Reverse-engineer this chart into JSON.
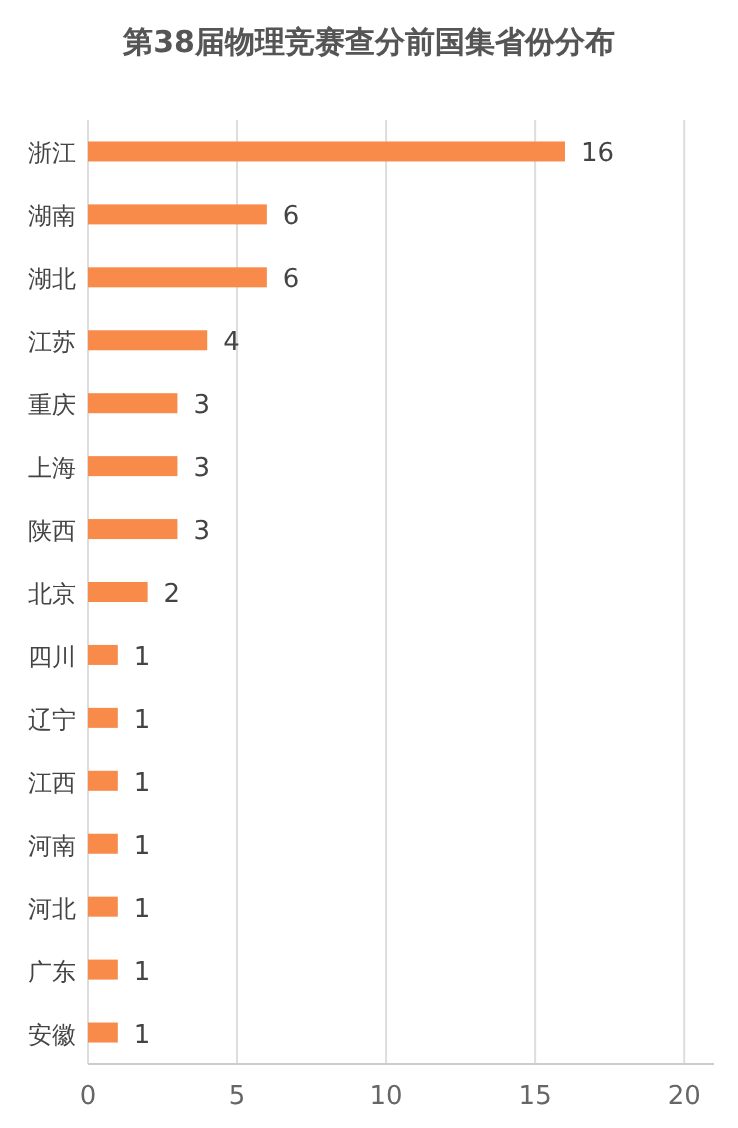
{
  "chart_data": {
    "type": "bar",
    "orientation": "horizontal",
    "title": "第38届物理竞赛查分前国集省份分布",
    "categories": [
      "浙江",
      "湖南",
      "湖北",
      "江苏",
      "重庆",
      "上海",
      "陕西",
      "北京",
      "四川",
      "辽宁",
      "江西",
      "河南",
      "河北",
      "广东",
      "安徽"
    ],
    "values": [
      16,
      6,
      6,
      4,
      3,
      3,
      3,
      2,
      1,
      1,
      1,
      1,
      1,
      1,
      1
    ],
    "color": "#f88a4a",
    "xlim": [
      0,
      21
    ],
    "xticks": [
      0,
      5,
      10,
      15,
      20
    ],
    "grid": "x",
    "data_labels": true
  }
}
